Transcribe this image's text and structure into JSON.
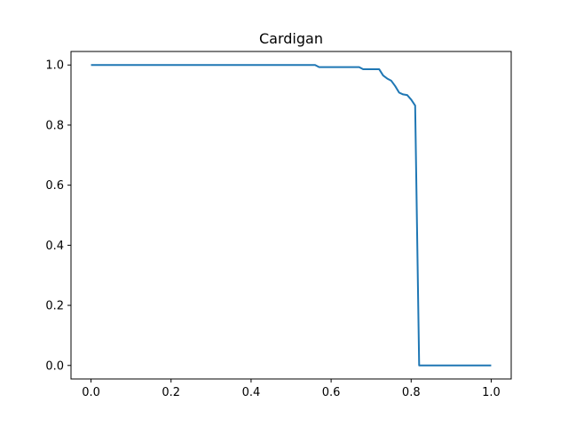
{
  "chart_data": {
    "type": "line",
    "title": "Cardigan",
    "xlabel": "",
    "ylabel": "",
    "xlim": [
      -0.05,
      1.05
    ],
    "ylim": [
      -0.045,
      1.045
    ],
    "xticks": [
      0.0,
      0.2,
      0.4,
      0.6,
      0.8,
      1.0
    ],
    "xtick_labels": [
      "0.0",
      "0.2",
      "0.4",
      "0.6",
      "0.8",
      "1.0"
    ],
    "yticks": [
      0.0,
      0.2,
      0.4,
      0.6,
      0.8,
      1.0
    ],
    "ytick_labels": [
      "0.0",
      "0.2",
      "0.4",
      "0.6",
      "0.8",
      "1.0"
    ],
    "grid": false,
    "series": [
      {
        "color": "#1f77b4",
        "x": [
          0.0,
          0.56,
          0.57,
          0.67,
          0.68,
          0.72,
          0.73,
          0.74,
          0.75,
          0.76,
          0.77,
          0.78,
          0.79,
          0.8,
          0.81,
          0.82,
          1.0
        ],
        "y": [
          1.0,
          1.0,
          0.993,
          0.993,
          0.986,
          0.986,
          0.965,
          0.955,
          0.948,
          0.93,
          0.908,
          0.902,
          0.9,
          0.885,
          0.865,
          0.0,
          0.0
        ]
      }
    ]
  }
}
